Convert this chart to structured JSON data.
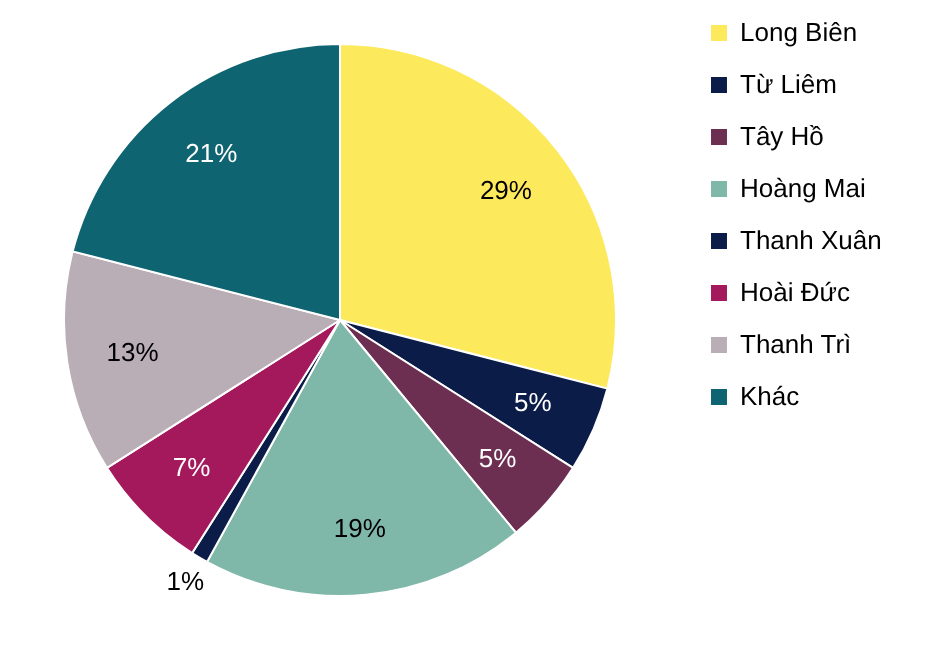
{
  "chart_data": {
    "type": "pie",
    "categories": [
      "Long Biên",
      "Từ Liêm",
      "Tây Hồ",
      "Hoàng Mai",
      "Thanh Xuân",
      "Hoài Đức",
      "Thanh Trì",
      "Khác"
    ],
    "values": [
      29,
      5,
      5,
      19,
      1,
      7,
      13,
      21
    ],
    "value_labels": [
      "29%",
      "5%",
      "5%",
      "19%",
      "1%",
      "7%",
      "13%",
      "21%"
    ],
    "colors": [
      "#fde95c",
      "#0b1c48",
      "#6c2f52",
      "#7fb8a8",
      "#0b1c48",
      "#a3195b",
      "#b9adb6",
      "#0e6470"
    ],
    "legend": "right"
  }
}
